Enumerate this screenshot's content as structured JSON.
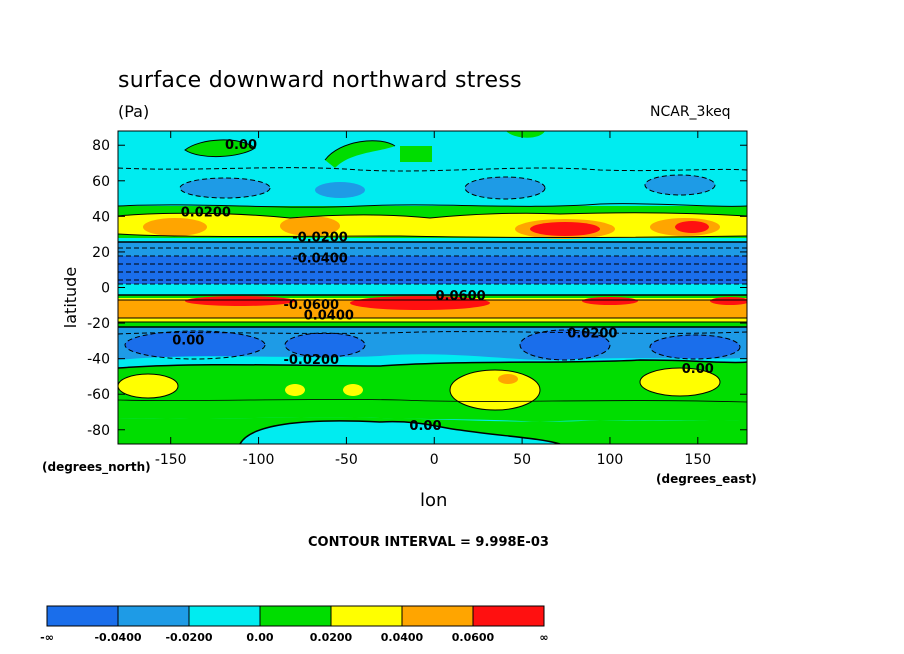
{
  "header": {
    "title": "surface downward northward stress",
    "units": "(Pa)",
    "model": "NCAR_3keq"
  },
  "axes": {
    "ylabel": "latitude",
    "xlabel": "lon",
    "y_units": "(degrees_north)",
    "x_units": "(degrees_east)"
  },
  "contour_interval": "CONTOUR INTERVAL = 9.998E-03",
  "chart_data": {
    "type": "heatmap",
    "title": "surface downward northward stress",
    "xlabel": "lon",
    "ylabel": "latitude",
    "xlim": [
      -180,
      178
    ],
    "ylim": [
      -88,
      88
    ],
    "xticks": [
      -150,
      -100,
      -50,
      0,
      50,
      100,
      150
    ],
    "yticks": [
      80,
      60,
      40,
      20,
      0,
      -20,
      -40,
      -60,
      -80
    ],
    "legend": {
      "placement": "bottom",
      "colors": [
        "#1a6eeb",
        "#1e9be6",
        "#00ecf0",
        "#00dd00",
        "#ffff00",
        "#ffa500",
        "#ff1010"
      ],
      "labels": [
        "-∞",
        "-0.0400",
        "-0.0200",
        "0.00",
        "0.0200",
        "0.0400",
        "0.0600",
        "∞"
      ]
    },
    "contour_labels": [
      "0.00",
      "0.0200",
      "-0.0200",
      "-0.0400",
      "0.0600",
      "-0.0600",
      "0.0400",
      "0.00",
      "-0.0200",
      "0.0200",
      "0.00",
      "0.00"
    ],
    "regions": [
      {
        "level": "0.0200",
        "lon": [
          -180,
          178
        ],
        "lat": [
          30,
          44
        ]
      },
      {
        "level": "0.0400",
        "lon": [
          -165,
          -125
        ],
        "lat": [
          30,
          38
        ]
      },
      {
        "level": "0.0600",
        "lon": [
          50,
          100
        ],
        "lat": [
          29,
          36
        ]
      },
      {
        "level": "-0.0400",
        "lon": [
          -180,
          178
        ],
        "lat": [
          4,
          16
        ]
      },
      {
        "level": "0.0400",
        "lon": [
          -180,
          178
        ],
        "lat": [
          -14,
          -6
        ]
      },
      {
        "level": "0.0600",
        "lon": [
          -40,
          10
        ],
        "lat": [
          -12,
          -7
        ]
      },
      {
        "level": "-0.0400",
        "lon": [
          50,
          100
        ],
        "lat": [
          -40,
          -28
        ]
      },
      {
        "level": "0.0200",
        "lon": [
          20,
          65
        ],
        "lat": [
          -68,
          -46
        ]
      },
      {
        "level": "0.0200",
        "lon": [
          120,
          160
        ],
        "lat": [
          -62,
          -50
        ]
      }
    ]
  }
}
